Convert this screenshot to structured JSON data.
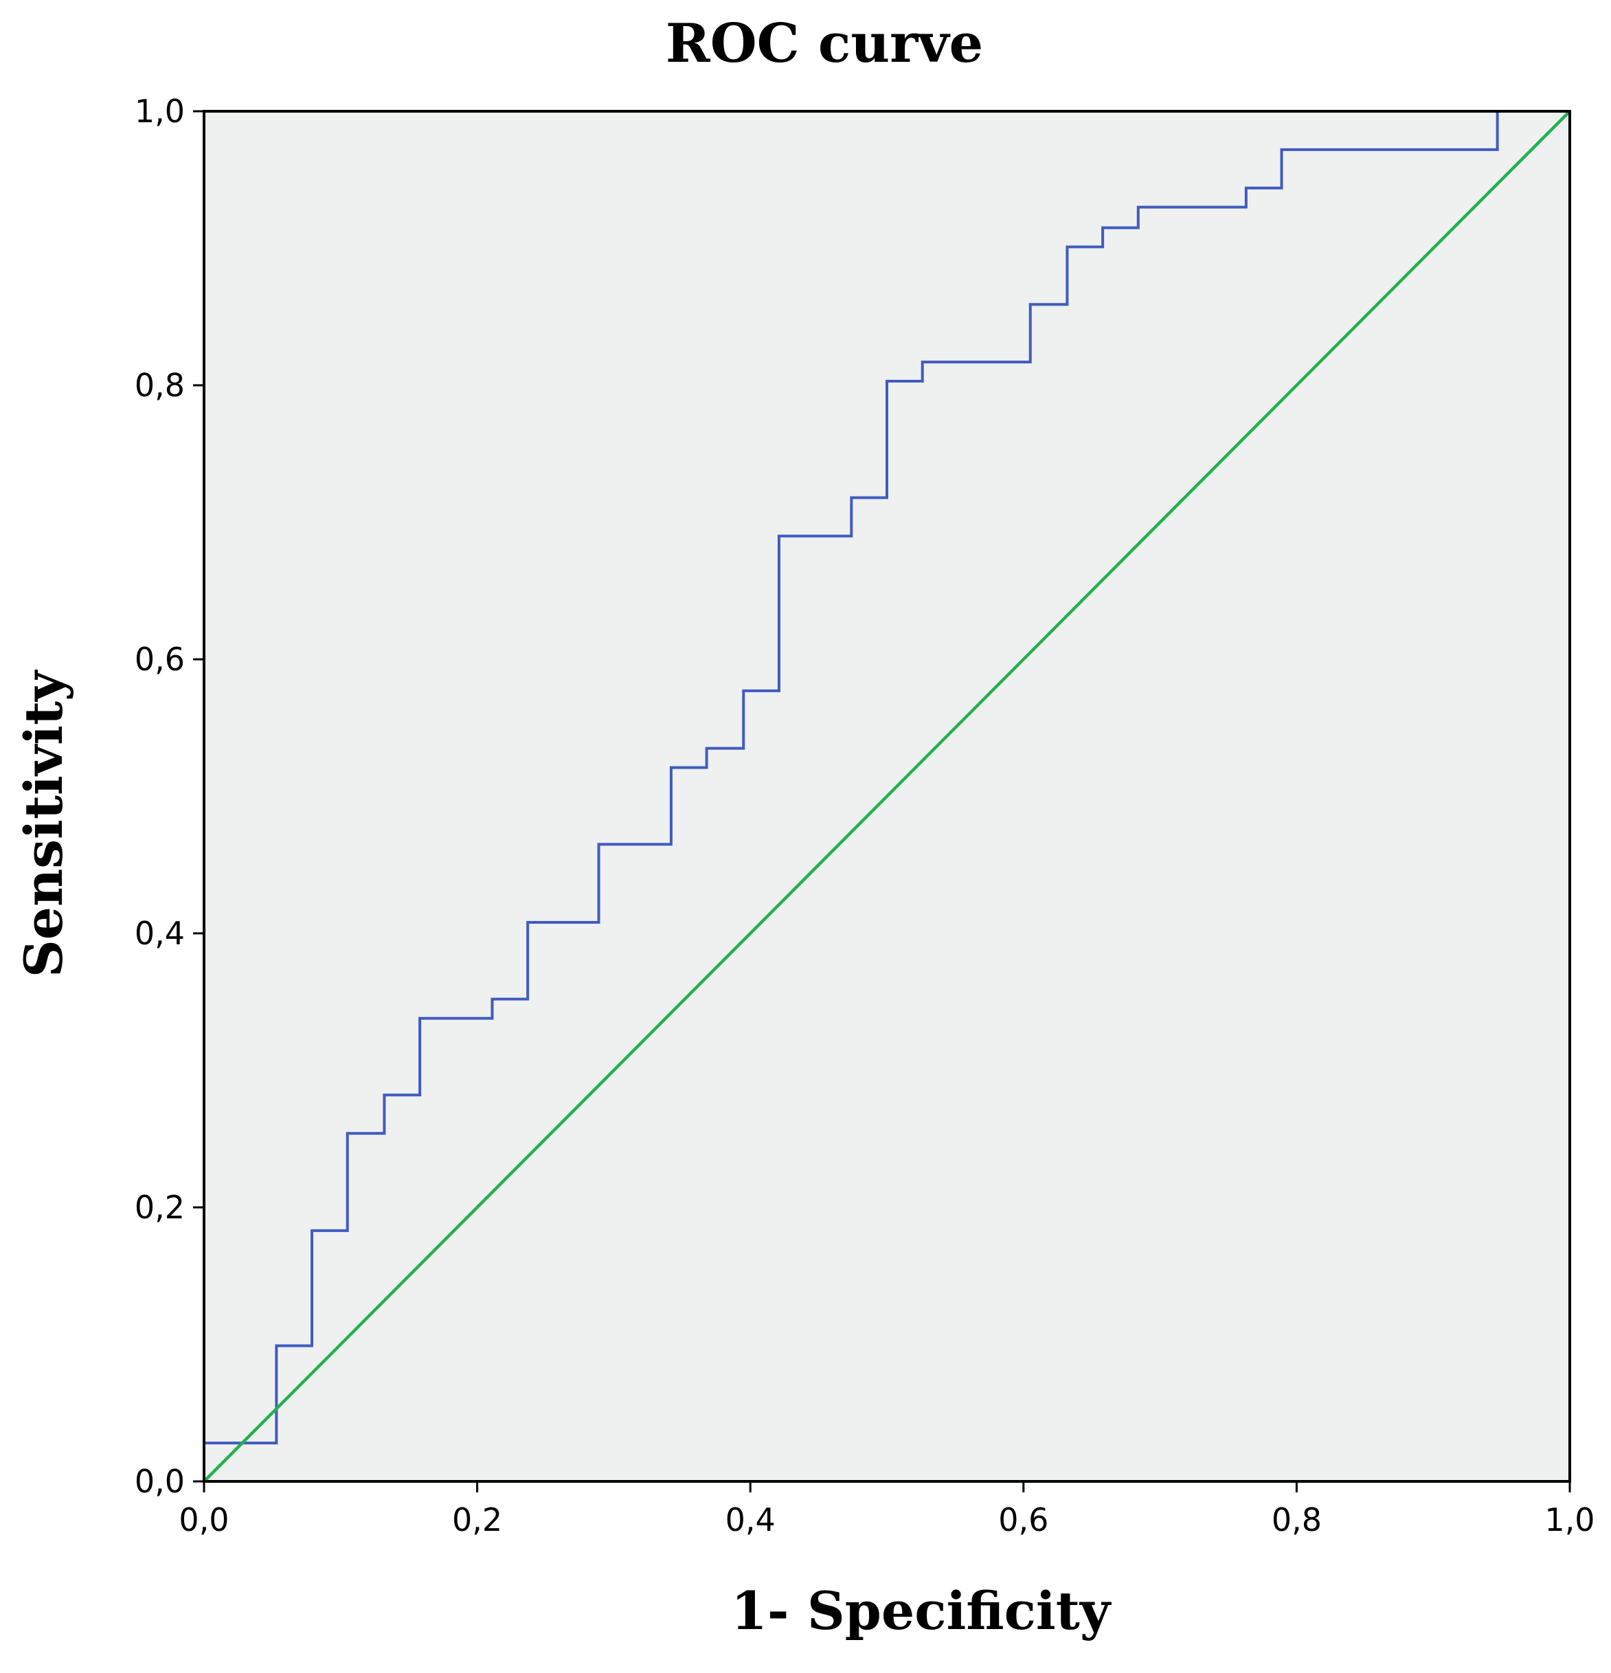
{
  "chart_data": {
    "type": "line",
    "title": "ROC curve",
    "xlabel": "1- Specificity",
    "ylabel": "Sensitivity",
    "xlim": [
      0,
      1
    ],
    "ylim": [
      0,
      1
    ],
    "xticks": [
      "0,0",
      "0,2",
      "0,4",
      "0,6",
      "0,8",
      "1,0"
    ],
    "yticks": [
      "0,0",
      "0,2",
      "0,4",
      "0,6",
      "0,8",
      "1,0"
    ],
    "grid": false,
    "background_color": "#eff0f0",
    "series": [
      {
        "color": "#3f5cbf",
        "step": true,
        "x": [
          0.0,
          0.053,
          0.079,
          0.105,
          0.132,
          0.158,
          0.211,
          0.237,
          0.289,
          0.342,
          0.368,
          0.395,
          0.421,
          0.474,
          0.5,
          0.526,
          0.605,
          0.632,
          0.658,
          0.684,
          0.763,
          0.789,
          0.947,
          1.0
        ],
        "y": [
          0.028,
          0.099,
          0.183,
          0.254,
          0.282,
          0.338,
          0.352,
          0.408,
          0.465,
          0.521,
          0.535,
          0.577,
          0.69,
          0.718,
          0.803,
          0.817,
          0.859,
          0.901,
          0.915,
          0.93,
          0.944,
          0.972,
          1.0,
          1.0
        ]
      },
      {
        "color": "#22b14c",
        "step": false,
        "x": [
          0,
          1
        ],
        "y": [
          0,
          1
        ]
      }
    ]
  }
}
